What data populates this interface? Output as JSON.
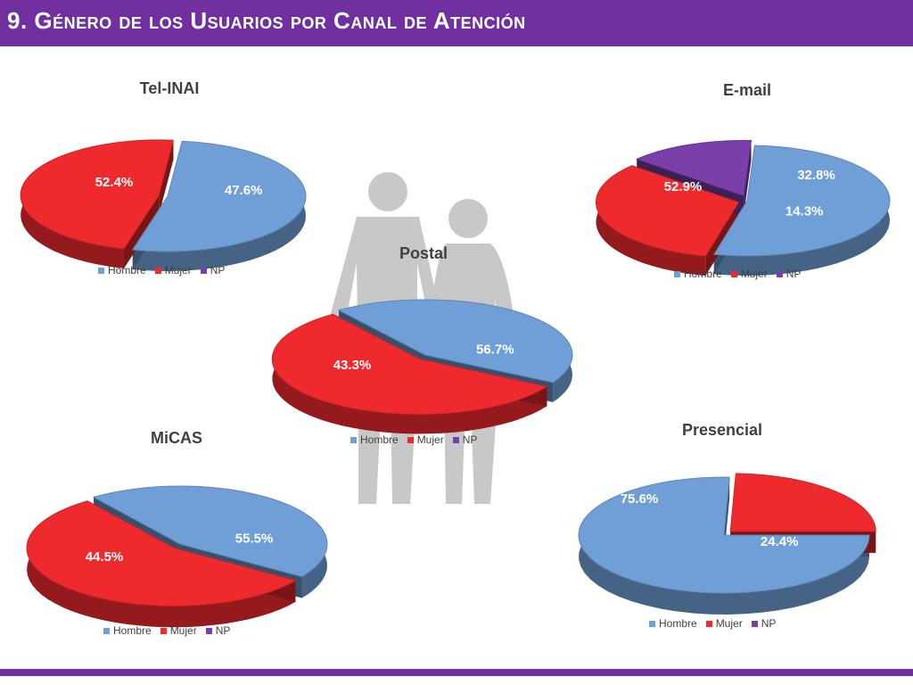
{
  "header": {
    "title": "9. Género de los Usuarios por Canal de Atención"
  },
  "colors": {
    "hombre": "#6f9fd6",
    "mujer": "#ee2a2e",
    "np": "#7a3fa8",
    "header": "#7030a0"
  },
  "chart_data": [
    {
      "type": "pie",
      "title": "Tel-INAI",
      "categories": [
        "Hombre",
        "Mujer",
        "NP"
      ],
      "values": [
        52.4,
        47.6,
        0
      ],
      "labels": [
        "52.4%",
        "47.6%",
        ""
      ],
      "legend": "bottom"
    },
    {
      "type": "pie",
      "title": "E-mail",
      "categories": [
        "Hombre",
        "Mujer",
        "NP"
      ],
      "values": [
        52.9,
        32.8,
        14.3
      ],
      "labels": [
        "52.9%",
        "32.8%",
        "14.3%"
      ],
      "legend": "bottom"
    },
    {
      "type": "pie",
      "title": "Postal",
      "categories": [
        "Hombre",
        "Mujer",
        "NP"
      ],
      "values": [
        43.3,
        56.7,
        0
      ],
      "labels": [
        "43.3%",
        "56.7%",
        ""
      ],
      "legend": "bottom"
    },
    {
      "type": "pie",
      "title": "MiCAS",
      "categories": [
        "Hombre",
        "Mujer",
        "NP"
      ],
      "values": [
        44.5,
        55.5,
        0
      ],
      "labels": [
        "44.5%",
        "55.5%",
        ""
      ],
      "legend": "bottom"
    },
    {
      "type": "pie",
      "title": "Presencial",
      "categories": [
        "Hombre",
        "Mujer",
        "NP"
      ],
      "values": [
        75.6,
        24.4,
        0
      ],
      "labels": [
        "75.6%",
        "24.4%",
        ""
      ],
      "legend": "bottom"
    }
  ]
}
